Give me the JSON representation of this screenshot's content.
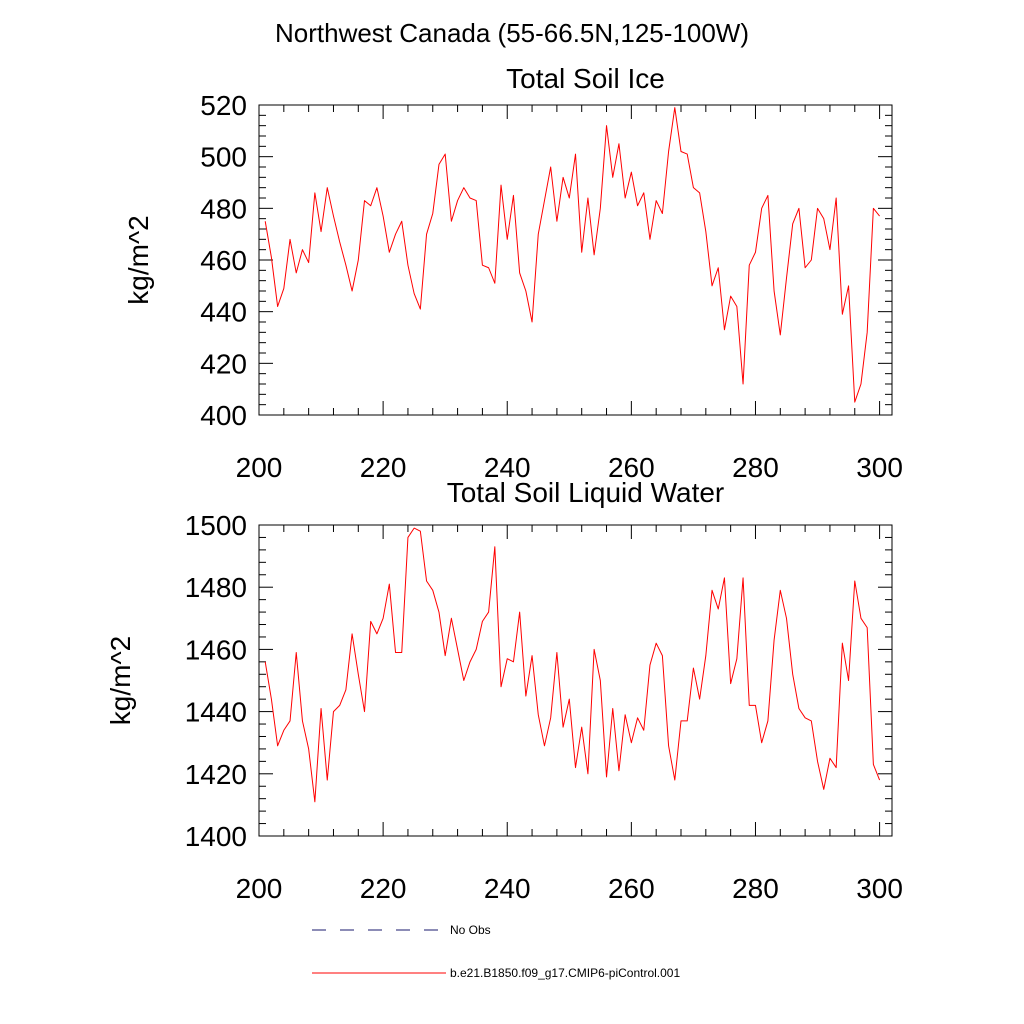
{
  "figure_title": "Northwest Canada (55-66.5N,125-100W)",
  "colors": {
    "series": "#ff0000",
    "obs": "#1a1a6e",
    "axis": "#000000"
  },
  "legend": {
    "entries": [
      {
        "label": "No Obs",
        "style": "dashed",
        "color": "#1a1a6e"
      },
      {
        "label": "b.e21.B1850.f09_g17.CMIP6-piControl.001",
        "style": "solid",
        "color": "#ff0000"
      }
    ]
  },
  "chart_data": [
    {
      "type": "line",
      "title": "Total Soil Ice",
      "xlabel": "",
      "ylabel": "kg/m^2",
      "xlim": [
        200,
        302
      ],
      "ylim": [
        400,
        520
      ],
      "xticks": [
        200,
        220,
        240,
        260,
        280,
        300
      ],
      "yticks": [
        400,
        420,
        440,
        460,
        480,
        500,
        520
      ],
      "x_start": 201,
      "series": [
        {
          "name": "b.e21.B1850.f09_g17.CMIP6-piControl.001",
          "values": [
            475,
            461,
            442,
            449,
            468,
            455,
            464,
            459,
            486,
            471,
            488,
            477,
            467,
            458,
            448,
            460,
            483,
            481,
            488,
            477,
            463,
            470,
            475,
            458,
            447,
            441,
            470,
            478,
            497,
            501,
            475,
            483,
            488,
            484,
            483,
            458,
            457,
            451,
            489,
            468,
            485,
            455,
            448,
            436,
            470,
            483,
            496,
            475,
            492,
            484,
            501,
            463,
            484,
            462,
            480,
            512,
            492,
            505,
            484,
            494,
            481,
            486,
            468,
            483,
            478,
            502,
            519,
            502,
            501,
            488,
            486,
            471,
            450,
            457,
            433,
            446,
            442,
            412,
            458,
            463,
            480,
            485,
            448,
            431,
            453,
            474,
            480,
            457,
            460,
            480,
            476,
            464,
            484,
            439,
            450,
            405,
            412,
            432,
            480,
            477
          ]
        }
      ]
    },
    {
      "type": "line",
      "title": "Total Soil Liquid Water",
      "xlabel": "",
      "ylabel": "kg/m^2",
      "xlim": [
        200,
        302
      ],
      "ylim": [
        1400,
        1500
      ],
      "xticks": [
        200,
        220,
        240,
        260,
        280,
        300
      ],
      "yticks": [
        1400,
        1420,
        1440,
        1460,
        1480,
        1500
      ],
      "x_start": 201,
      "series": [
        {
          "name": "b.e21.B1850.f09_g17.CMIP6-piControl.001",
          "values": [
            1456,
            1444,
            1429,
            1434,
            1437,
            1459,
            1437,
            1428,
            1411,
            1441,
            1418,
            1440,
            1442,
            1447,
            1465,
            1452,
            1440,
            1469,
            1465,
            1470,
            1481,
            1459,
            1459,
            1496,
            1499,
            1498,
            1482,
            1479,
            1472,
            1458,
            1470,
            1460,
            1450,
            1456,
            1460,
            1469,
            1472,
            1493,
            1448,
            1457,
            1456,
            1472,
            1445,
            1458,
            1439,
            1429,
            1438,
            1459,
            1435,
            1444,
            1422,
            1435,
            1420,
            1460,
            1450,
            1419,
            1441,
            1421,
            1439,
            1430,
            1438,
            1434,
            1455,
            1462,
            1458,
            1429,
            1418,
            1437,
            1437,
            1454,
            1444,
            1458,
            1479,
            1473,
            1483,
            1449,
            1457,
            1483,
            1442,
            1442,
            1430,
            1437,
            1463,
            1479,
            1470,
            1452,
            1441,
            1438,
            1437,
            1424,
            1415,
            1425,
            1422,
            1462,
            1450,
            1482,
            1470,
            1467,
            1423,
            1418
          ]
        }
      ]
    }
  ]
}
